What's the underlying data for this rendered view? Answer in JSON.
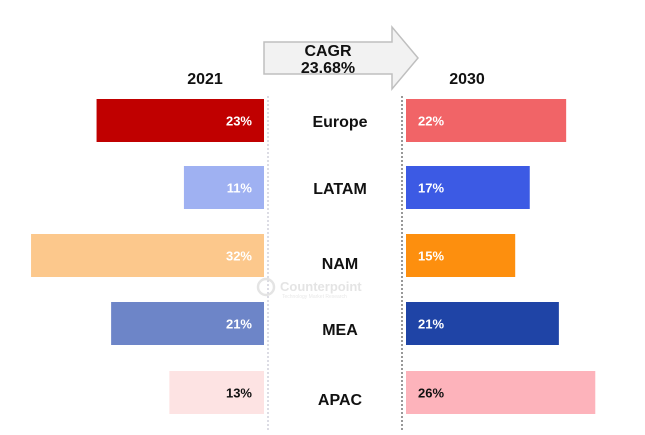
{
  "chart_data": {
    "type": "bar",
    "title": "",
    "cagr": {
      "label": "CAGR",
      "value": "23.68%"
    },
    "years": {
      "left": "2021",
      "right": "2030"
    },
    "categories": [
      "Europe",
      "LATAM",
      "NAM",
      "MEA",
      "APAC"
    ],
    "series": [
      {
        "name": "2021",
        "values": [
          23,
          11,
          32,
          21,
          13
        ],
        "labels": [
          "23%",
          "11%",
          "32%",
          "21%",
          "13%"
        ]
      },
      {
        "name": "2030",
        "values": [
          22,
          17,
          15,
          21,
          26
        ],
        "labels": [
          "22%",
          "17%",
          "15%",
          "21%",
          "26%"
        ]
      }
    ],
    "colors_2021": [
      "#c00000",
      "#9fb1f2",
      "#fcc88c",
      "#6d85c8",
      "#fde3e3"
    ],
    "colors_2030": [
      "#f16467",
      "#3c5ae4",
      "#fd8f0e",
      "#1f44a6",
      "#fdb3bb"
    ],
    "label_colors_2021": [
      "#ffffff",
      "#ffffff",
      "#ffffff",
      "#ffffff",
      "#111111"
    ],
    "label_colors_2030": [
      "#ffffff",
      "#ffffff",
      "#ffffff",
      "#ffffff",
      "#111111"
    ]
  },
  "watermark": {
    "brand": "Counterpoint",
    "tagline": "Technology Market Research"
  }
}
